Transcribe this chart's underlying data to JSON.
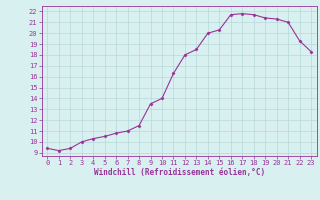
{
  "x": [
    0,
    1,
    2,
    3,
    4,
    5,
    6,
    7,
    8,
    9,
    10,
    11,
    12,
    13,
    14,
    15,
    16,
    17,
    18,
    19,
    20,
    21,
    22,
    23
  ],
  "y": [
    9.4,
    9.2,
    9.4,
    10.0,
    10.3,
    10.5,
    10.8,
    11.0,
    11.5,
    13.5,
    14.0,
    16.3,
    18.0,
    18.5,
    20.0,
    20.3,
    21.7,
    21.8,
    21.7,
    21.4,
    21.3,
    21.0,
    19.3,
    18.3
  ],
  "line_color": "#993399",
  "marker": "D",
  "marker_size": 1.5,
  "line_width": 0.8,
  "xlabel": "Windchill (Refroidissement éolien,°C)",
  "ylabel_ticks": [
    9,
    10,
    11,
    12,
    13,
    14,
    15,
    16,
    17,
    18,
    19,
    20,
    21,
    22
  ],
  "ylim": [
    8.7,
    22.5
  ],
  "xlim": [
    -0.5,
    23.5
  ],
  "bg_color": "#d8f0f0",
  "grid_color": "#b8d8d8",
  "tick_label_color": "#993399",
  "xlabel_color": "#993399",
  "tick_fontsize": 5,
  "xlabel_fontsize": 5.5
}
